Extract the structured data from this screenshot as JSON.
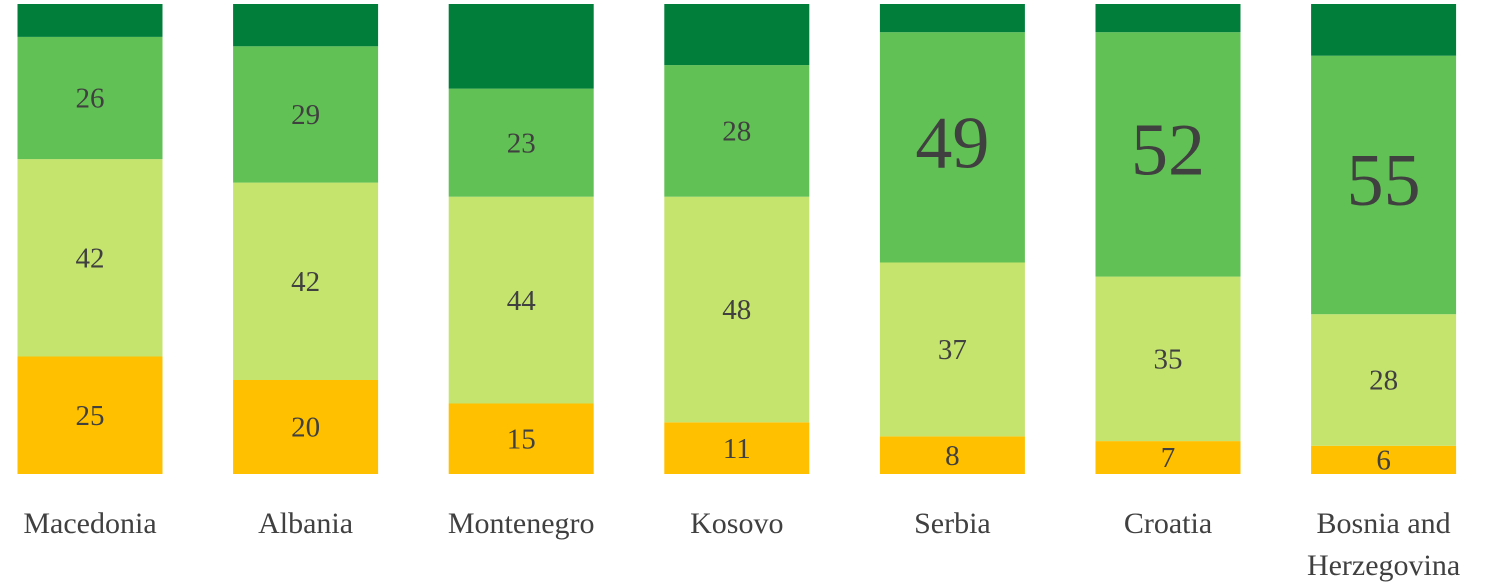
{
  "chart_data": {
    "type": "stacked_bar",
    "categories": [
      "Macedonia",
      "Albania",
      "Montenegro",
      "Kosovo",
      "Serbia",
      "Croatia",
      "Bosnia and Herzegovina"
    ],
    "series": [
      {
        "color": "#ffc000",
        "values": [
          25,
          20,
          15,
          11,
          8,
          7,
          6
        ],
        "labels": true
      },
      {
        "color": "#c5e46e",
        "values": [
          42,
          42,
          44,
          48,
          37,
          35,
          28
        ],
        "labels": true
      },
      {
        "color": "#62c155",
        "values": [
          26,
          29,
          23,
          28,
          49,
          52,
          55
        ],
        "labels": true
      },
      {
        "color": "#007e3a",
        "values": [
          7,
          9,
          18,
          13,
          6,
          6,
          11
        ],
        "labels": false
      }
    ],
    "ylim": [
      0,
      100
    ],
    "grid": false
  }
}
